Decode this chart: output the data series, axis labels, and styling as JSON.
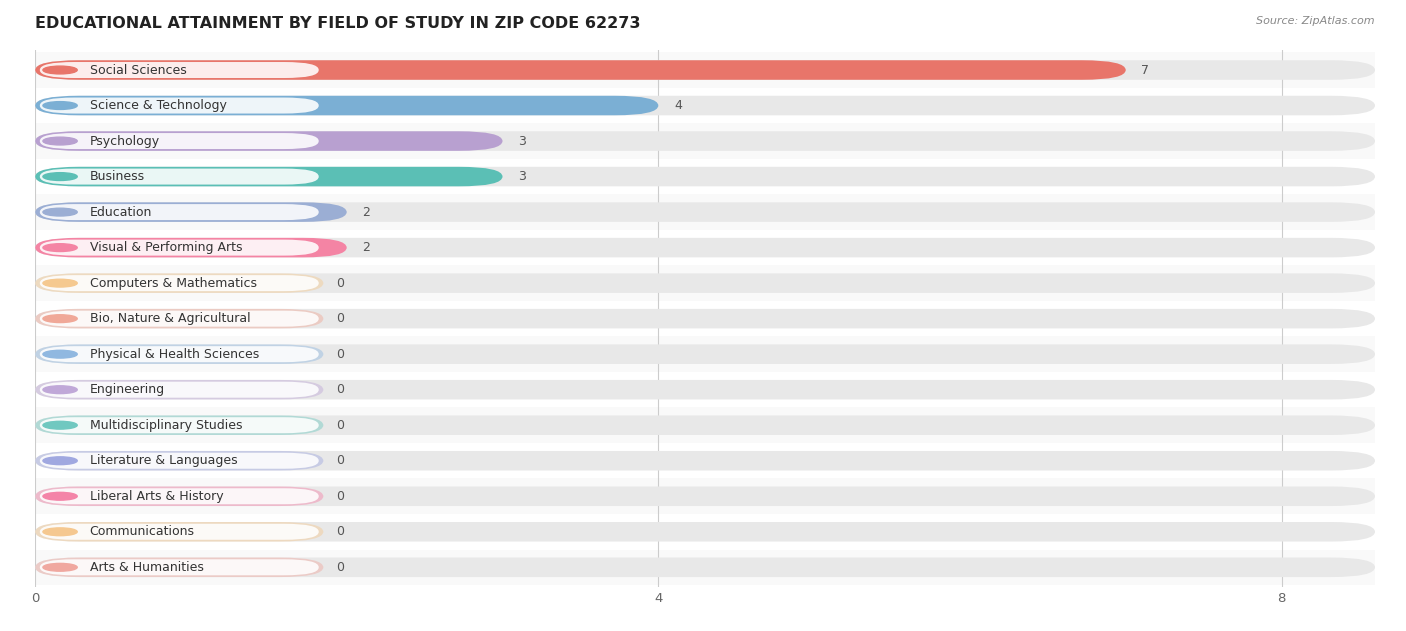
{
  "title": "EDUCATIONAL ATTAINMENT BY FIELD OF STUDY IN ZIP CODE 62273",
  "source": "Source: ZipAtlas.com",
  "categories": [
    "Social Sciences",
    "Science & Technology",
    "Psychology",
    "Business",
    "Education",
    "Visual & Performing Arts",
    "Computers & Mathematics",
    "Bio, Nature & Agricultural",
    "Physical & Health Sciences",
    "Engineering",
    "Multidisciplinary Studies",
    "Literature & Languages",
    "Liberal Arts & History",
    "Communications",
    "Arts & Humanities"
  ],
  "values": [
    7,
    4,
    3,
    3,
    2,
    2,
    0,
    0,
    0,
    0,
    0,
    0,
    0,
    0,
    0
  ],
  "bar_colors": [
    "#E8756A",
    "#7BAFD4",
    "#B8A0D0",
    "#5BBFB5",
    "#9BAED4",
    "#F484A4",
    "#F5C990",
    "#F0A898",
    "#90B8E0",
    "#C0A8D8",
    "#70C8C0",
    "#A0A8E0",
    "#F484A8",
    "#F5C890",
    "#F0A8A0"
  ],
  "bar_bg_color": "#e8e8e8",
  "xlim": [
    0,
    8.6
  ],
  "xticks": [
    0,
    4,
    8
  ],
  "title_fontsize": 11.5,
  "label_fontsize": 9,
  "value_fontsize": 9,
  "source_fontsize": 8
}
